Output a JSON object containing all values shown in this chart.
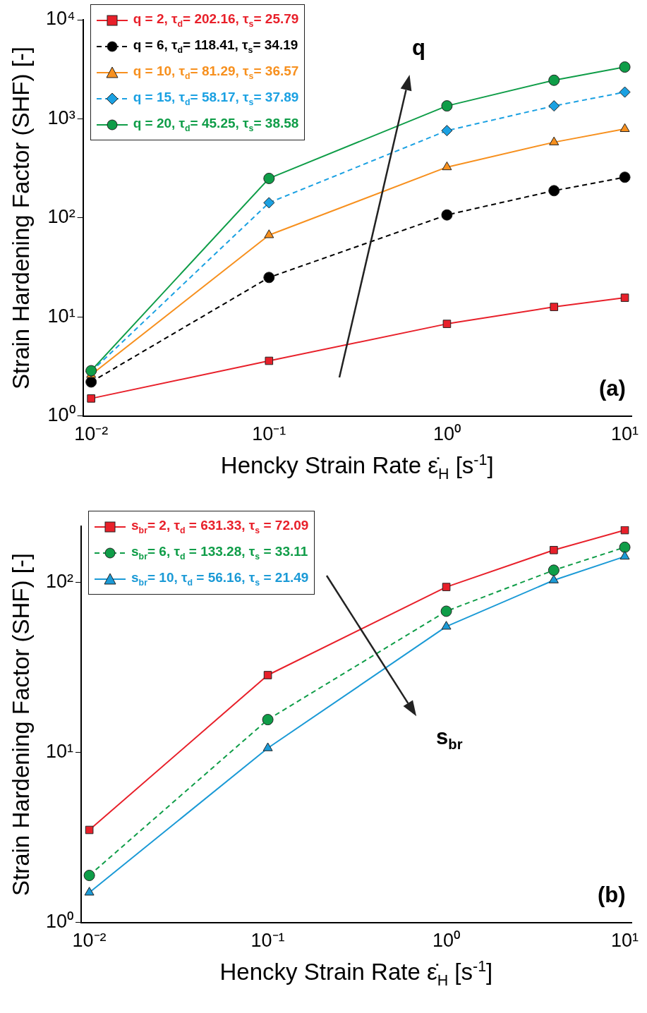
{
  "chart_data": [
    {
      "type": "line",
      "xlabel": "Hencky Strain Rate ε̇$_{H}$ [s$^{-1}$]",
      "ylabel": "Strain Hardening Factor (SHF) [-]",
      "log": "xy",
      "grid": false,
      "legend": "top left",
      "x": [
        0.01,
        0.1,
        1,
        4,
        10
      ],
      "xlim": [
        0.009,
        10.9
      ],
      "xticks": [
        {
          "value": 0.01,
          "label": "10⁻²"
        },
        {
          "value": 0.1,
          "label": "10⁻¹"
        },
        {
          "value": 1,
          "label": "10⁰"
        },
        {
          "value": 10,
          "label": "10¹"
        }
      ],
      "ylim": [
        1,
        10000
      ],
      "yticks": [
        {
          "value": 1,
          "label": "10⁰"
        },
        {
          "value": 10,
          "label": "10¹"
        },
        {
          "value": 100,
          "label": "10²"
        },
        {
          "value": 1000,
          "label": "10³"
        },
        {
          "value": 10000,
          "label": "10⁴"
        }
      ],
      "series": [
        {
          "name": "q = 2, τ$_{d}$= 202.16, τ$_{s}$= 25.79",
          "color": "#e8202a",
          "marker": "square",
          "line_style": "solid",
          "values": [
            1.5,
            3.6,
            8.5,
            12.6,
            15.6
          ]
        },
        {
          "name": "q = 6, τ$_{d}$= 118.41, τ$_{s}$= 34.19",
          "color": "#000000",
          "marker": "circle",
          "line_style": "dashed",
          "values": [
            2.2,
            25,
            107,
            188,
            257
          ]
        },
        {
          "name": "q = 10, τ$_{d}$= 81.29, τ$_{s}$= 36.57",
          "color": "#f7901e",
          "marker": "triangle",
          "line_style": "solid",
          "values": [
            2.6,
            67,
            325,
            580,
            790
          ]
        },
        {
          "name": "q = 15, τ$_{d}$= 58.17, τ$_{s}$= 37.89",
          "color": "#1ba1e2",
          "marker": "diamond",
          "line_style": "dashed",
          "values": [
            2.8,
            142,
            760,
            1350,
            1860
          ]
        },
        {
          "name": "q = 20, τ$_{d}$= 45.25, τ$_{s}$= 38.58",
          "color": "#0f9d48",
          "marker": "circle",
          "line_style": "solid",
          "values": [
            2.86,
            250,
            1350,
            2450,
            3330
          ]
        }
      ],
      "annotations": [
        "q",
        "(a)"
      ]
    },
    {
      "type": "line",
      "xlabel": "Hencky Strain Rate ε̇$_{H}$ [s$^{-1}$]",
      "ylabel": "Strain Hardening Factor (SHF) [-]",
      "log": "xy",
      "grid": false,
      "legend": "top left",
      "x": [
        0.01,
        0.1,
        1,
        4,
        10
      ],
      "xlim": [
        0.009,
        10.9
      ],
      "xticks": [
        {
          "value": 0.01,
          "label": "10⁻²"
        },
        {
          "value": 0.1,
          "label": "10⁻¹"
        },
        {
          "value": 1,
          "label": "10⁰"
        },
        {
          "value": 10,
          "label": "10¹"
        }
      ],
      "ylim": [
        1,
        214
      ],
      "yticks": [
        {
          "value": 1,
          "label": "10⁰"
        },
        {
          "value": 10,
          "label": "10¹"
        },
        {
          "value": 100,
          "label": "10²"
        }
      ],
      "series": [
        {
          "name": "s$_{br}$= 2, τ$_{d}$ = 631.33, τ$_{s}$ = 72.09",
          "color": "#e8202a",
          "marker": "square",
          "line_style": "solid",
          "values": [
            3.5,
            28.5,
            94,
            155,
            203
          ]
        },
        {
          "name": "s$_{br}$= 6, τ$_{d}$ = 133.28, τ$_{s}$ = 33.11",
          "color": "#0f9d48",
          "marker": "circle",
          "line_style": "dashed",
          "values": [
            1.89,
            15.6,
            67.7,
            118,
            161
          ]
        },
        {
          "name": "s$_{br}$= 10, τ$_{d}$ = 56.16, τ$_{s}$ = 21.49",
          "color": "#1b9ad6",
          "marker": "triangle",
          "line_style": "solid",
          "values": [
            1.5,
            10.6,
            55,
            103,
            142
          ]
        }
      ],
      "annotations": [
        "s$_{br}$",
        "(b)"
      ]
    }
  ]
}
